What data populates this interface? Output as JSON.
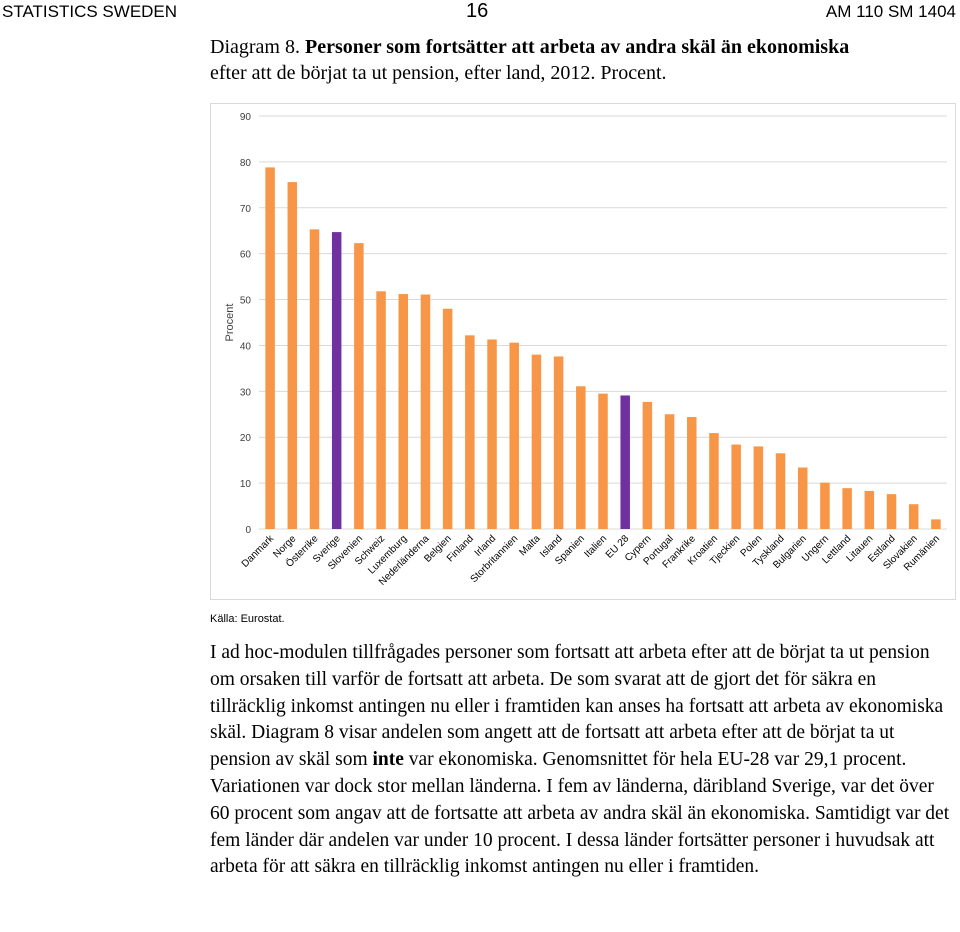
{
  "header": {
    "left": "STATISTICS SWEDEN",
    "center": "16",
    "right": "AM 110 SM 1404"
  },
  "title": {
    "label": "Diagram 8.",
    "line1": "Personer som fortsätter att arbeta av andra skäl än ekonomiska",
    "line2": "efter att de börjat ta ut pension, efter land, 2012. Procent."
  },
  "chart_data": {
    "type": "bar",
    "ylabel": "Procent",
    "ylim": [
      0,
      90
    ],
    "yticks": [
      "0",
      "10",
      "20",
      "30",
      "40",
      "50",
      "60",
      "70",
      "80",
      "90"
    ],
    "grid": true,
    "colors": {
      "default": "#f79646",
      "highlight": "#7030a0",
      "grid": "#d9d9d9"
    },
    "highlight": [
      "Sverige",
      "EU 28"
    ],
    "categories": [
      "Danmark",
      "Norge",
      "Österrike",
      "Sverige",
      "Slovenien",
      "Schweiz",
      "Luxemburg",
      "Nederländerna",
      "Belgien",
      "Finland",
      "Irland",
      "Storbritannien",
      "Malta",
      "Island",
      "Spanien",
      "Italien",
      "EU 28",
      "Cypern",
      "Portugal",
      "Frankrike",
      "Kroatien",
      "Tjeckien",
      "Polen",
      "Tyskland",
      "Bulgarien",
      "Ungern",
      "Lettland",
      "Litauen",
      "Estland",
      "Slovakien",
      "Rumänien"
    ],
    "values": [
      78.8,
      75.6,
      65.3,
      64.7,
      62.3,
      51.8,
      51.2,
      51.1,
      48.0,
      42.2,
      41.3,
      40.6,
      38.0,
      37.6,
      31.1,
      29.5,
      29.1,
      27.7,
      25.0,
      24.4,
      20.9,
      18.4,
      18.0,
      16.5,
      13.4,
      10.1,
      8.9,
      8.3,
      7.6,
      5.4,
      2.1
    ]
  },
  "source": "Källa: Eurostat.",
  "paragraph": {
    "part1": "I ad hoc-modulen tillfrågades personer som fortsatt att arbeta efter att de börjat ta ut pension om orsaken till varför de fortsatt att arbeta. De som svarat att de gjort det för säkra en tillräcklig inkomst antingen nu eller i framtiden kan anses ha fortsatt att arbeta av ekonomiska skäl. Diagram 8 visar andelen som angett att de fortsatt att arbeta efter att de börjat ta ut pension av skäl som",
    "emphasis": "inte",
    "part2": "var ekonomiska. Genomsnittet för hela EU-28 var 29,1 procent. Variationen var dock stor mellan länderna. I fem av länderna, däribland Sverige, var det över 60 procent som angav att de fortsatte att arbeta av andra skäl än ekonomiska. Samtidigt var det fem länder där andelen var under 10 procent. I dessa länder fortsätter personer i huvudsak att arbeta för att säkra en tillräcklig inkomst antingen nu eller i framtiden."
  }
}
